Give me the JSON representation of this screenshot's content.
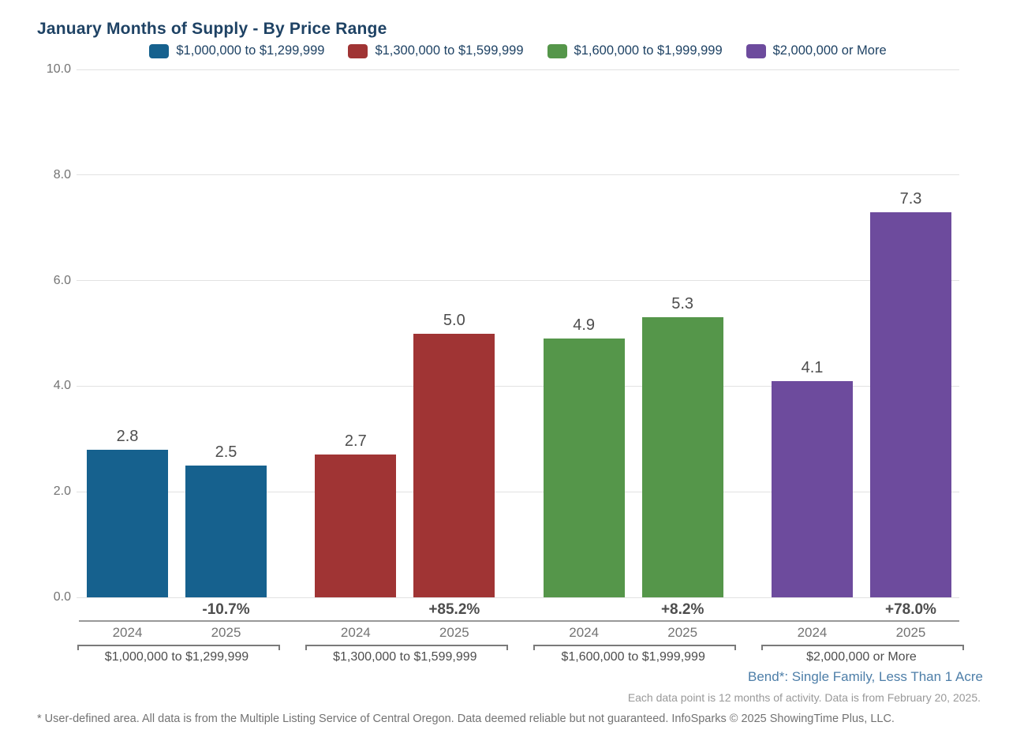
{
  "header": {
    "title": "January Months of Supply - By Price Range"
  },
  "chart_data": {
    "type": "bar",
    "title": "January Months of Supply - By Price Range",
    "categories": [
      "2024",
      "2025"
    ],
    "ylim": [
      0,
      10
    ],
    "yticks": [
      0,
      2,
      4,
      6,
      8,
      10
    ],
    "grid": true,
    "legend_position": "top",
    "groups": [
      {
        "label": "$1,000,000 to $1,299,999",
        "color": "#16618e",
        "values": [
          2.8,
          2.5
        ],
        "pct_change": "-10.7%"
      },
      {
        "label": "$1,300,000 to $1,599,999",
        "color": "#a03434",
        "values": [
          2.7,
          5.0
        ],
        "pct_change": "+85.2%"
      },
      {
        "label": "$1,600,000 to $1,999,999",
        "color": "#55964a",
        "values": [
          4.9,
          5.3
        ],
        "pct_change": "+8.2%"
      },
      {
        "label": "$2,000,000 or More",
        "color": "#6d4b9d",
        "values": [
          4.1,
          7.3
        ],
        "pct_change": "+78.0%"
      }
    ]
  },
  "notes": {
    "region": "Bend*: Single Family, Less Than 1 Acre",
    "data_note": "Each data point is 12 months of activity. Data is from February 20, 2025.",
    "footer": "* User-defined area. All data is from the Multiple Listing Service of Central Oregon. Data deemed reliable but not guaranteed. InfoSparks © 2025 ShowingTime Plus, LLC."
  }
}
